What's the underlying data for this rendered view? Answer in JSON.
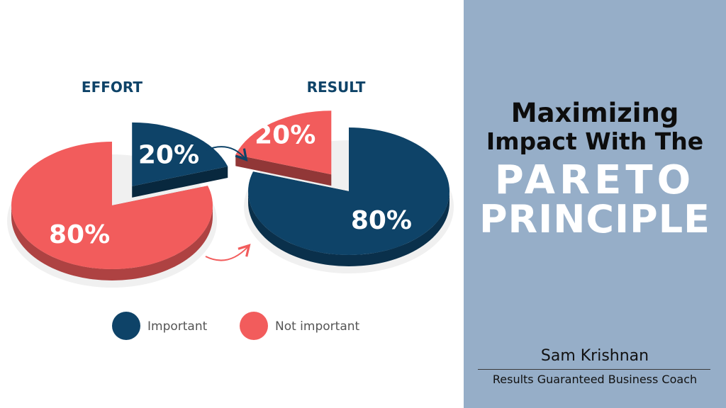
{
  "colors": {
    "important": "#0e4368",
    "not_important": "#f25c5c",
    "panel": "#96aec8"
  },
  "chart_data": [
    {
      "type": "pie",
      "title": "EFFORT",
      "slices": [
        {
          "label": "Important",
          "value": 20,
          "display": "20%",
          "color": "#0e4368"
        },
        {
          "label": "Not important",
          "value": 80,
          "display": "80%",
          "color": "#f25c5c"
        }
      ]
    },
    {
      "type": "pie",
      "title": "RESULT",
      "slices": [
        {
          "label": "Important",
          "value": 80,
          "display": "80%",
          "color": "#0e4368"
        },
        {
          "label": "Not important",
          "value": 20,
          "display": "20%",
          "color": "#f25c5c"
        }
      ]
    }
  ],
  "legend": [
    {
      "label": "Important",
      "color": "#0e4368"
    },
    {
      "label": "Not important",
      "color": "#f25c5c"
    }
  ],
  "title": {
    "line1": "Maximizing",
    "line2": "Impact With The",
    "line3": "PARETO",
    "line4": "PRINCIPLE"
  },
  "author": {
    "name": "Sam Krishnan",
    "role": "Results Guaranteed Business Coach"
  }
}
